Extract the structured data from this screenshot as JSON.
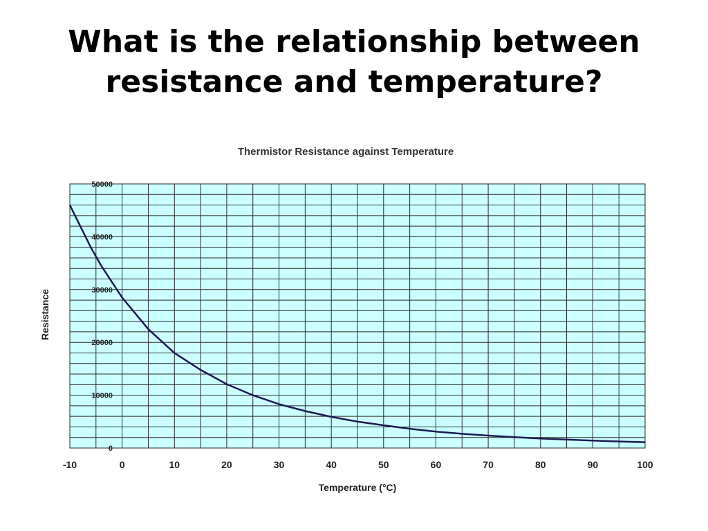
{
  "slide": {
    "title_line1": "What is the relationship between",
    "title_line2": "resistance and temperature?"
  },
  "chart_data": {
    "type": "line",
    "title": "Thermistor Resistance against Temperature",
    "xlabel": "Temperature (°C)",
    "ylabel": "Resistance",
    "xlim": [
      -10,
      100
    ],
    "ylim": [
      0,
      50000
    ],
    "x_ticks": [
      -10,
      0,
      10,
      20,
      30,
      40,
      50,
      60,
      70,
      80,
      90,
      100
    ],
    "y_ticks": [
      0,
      10000,
      20000,
      30000,
      40000,
      50000
    ],
    "grid": true,
    "plot_background": "#ccffff",
    "grid_color": "#2a2a2a",
    "line_color": "#1a1a50",
    "series": [
      {
        "x": [
          -10,
          -8,
          -6,
          -4,
          -2,
          0,
          5,
          10,
          15,
          20,
          25,
          30,
          35,
          40,
          45,
          50,
          55,
          60,
          65,
          70,
          75,
          80,
          85,
          90,
          95,
          100
        ],
        "values": [
          46000,
          42000,
          38000,
          34500,
          31500,
          28500,
          22500,
          18000,
          14800,
          12100,
          10000,
          8300,
          7000,
          5900,
          5000,
          4300,
          3650,
          3100,
          2700,
          2350,
          2050,
          1800,
          1600,
          1400,
          1250,
          1100
        ]
      }
    ]
  }
}
